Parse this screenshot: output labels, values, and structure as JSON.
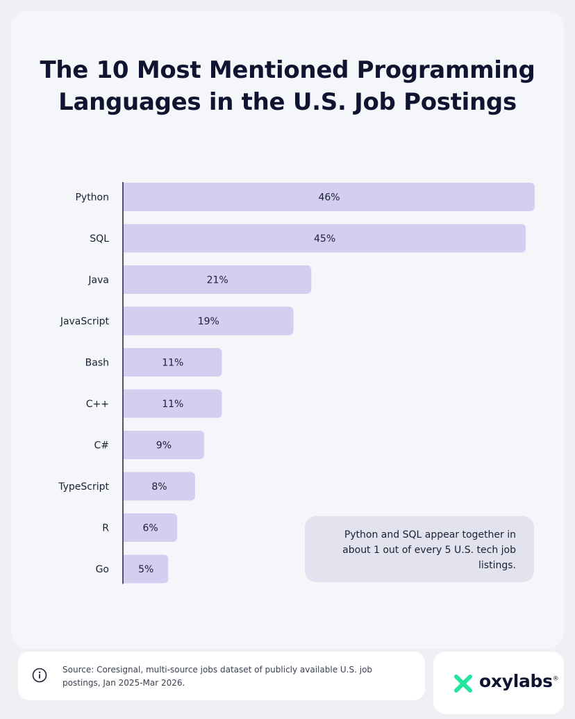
{
  "title": "The 10 Most Mentioned Programming Languages in the U.S. Job Postings",
  "title_line1": "The 10 Most Mentioned Programming",
  "title_line2": "Languages in the U.S. Job Postings",
  "note": {
    "line1": "Python and SQL appear together in",
    "line2": "about 1 out of every 5 U.S. tech job",
    "line3": "listings."
  },
  "source": {
    "line1": "Source: Coresignal, multi-source jobs dataset of publicly available U.S. job",
    "line2": "postings, Jan 2025-Mar 2026."
  },
  "logo": {
    "name": "oxylabs",
    "mark": "®"
  },
  "colors": {
    "bar": "#d4cff0",
    "axis": "#1a1f33",
    "label": "#1a1f33",
    "logo_green": "#23e5a0"
  },
  "icons": [
    "info-icon",
    "oxylabs-logo-mark"
  ],
  "chart_data": {
    "type": "bar",
    "orientation": "horizontal",
    "title": "The 10 Most Mentioned Programming Languages in the U.S. Job Postings",
    "categories": [
      "Python",
      "SQL",
      "Java",
      "JavaScript",
      "Bash",
      "C++",
      "C#",
      "TypeScript",
      "R",
      "Go"
    ],
    "values": [
      46,
      45,
      21,
      19,
      11,
      11,
      9,
      8,
      6,
      5
    ],
    "data_labels": [
      "46%",
      "45%",
      "21%",
      "19%",
      "11%",
      "11%",
      "9%",
      "8%",
      "6%",
      "5%"
    ],
    "unit": "%",
    "xlim": [
      0,
      46
    ],
    "xlabel": "",
    "ylabel": "",
    "grid": false,
    "legend": "none"
  }
}
